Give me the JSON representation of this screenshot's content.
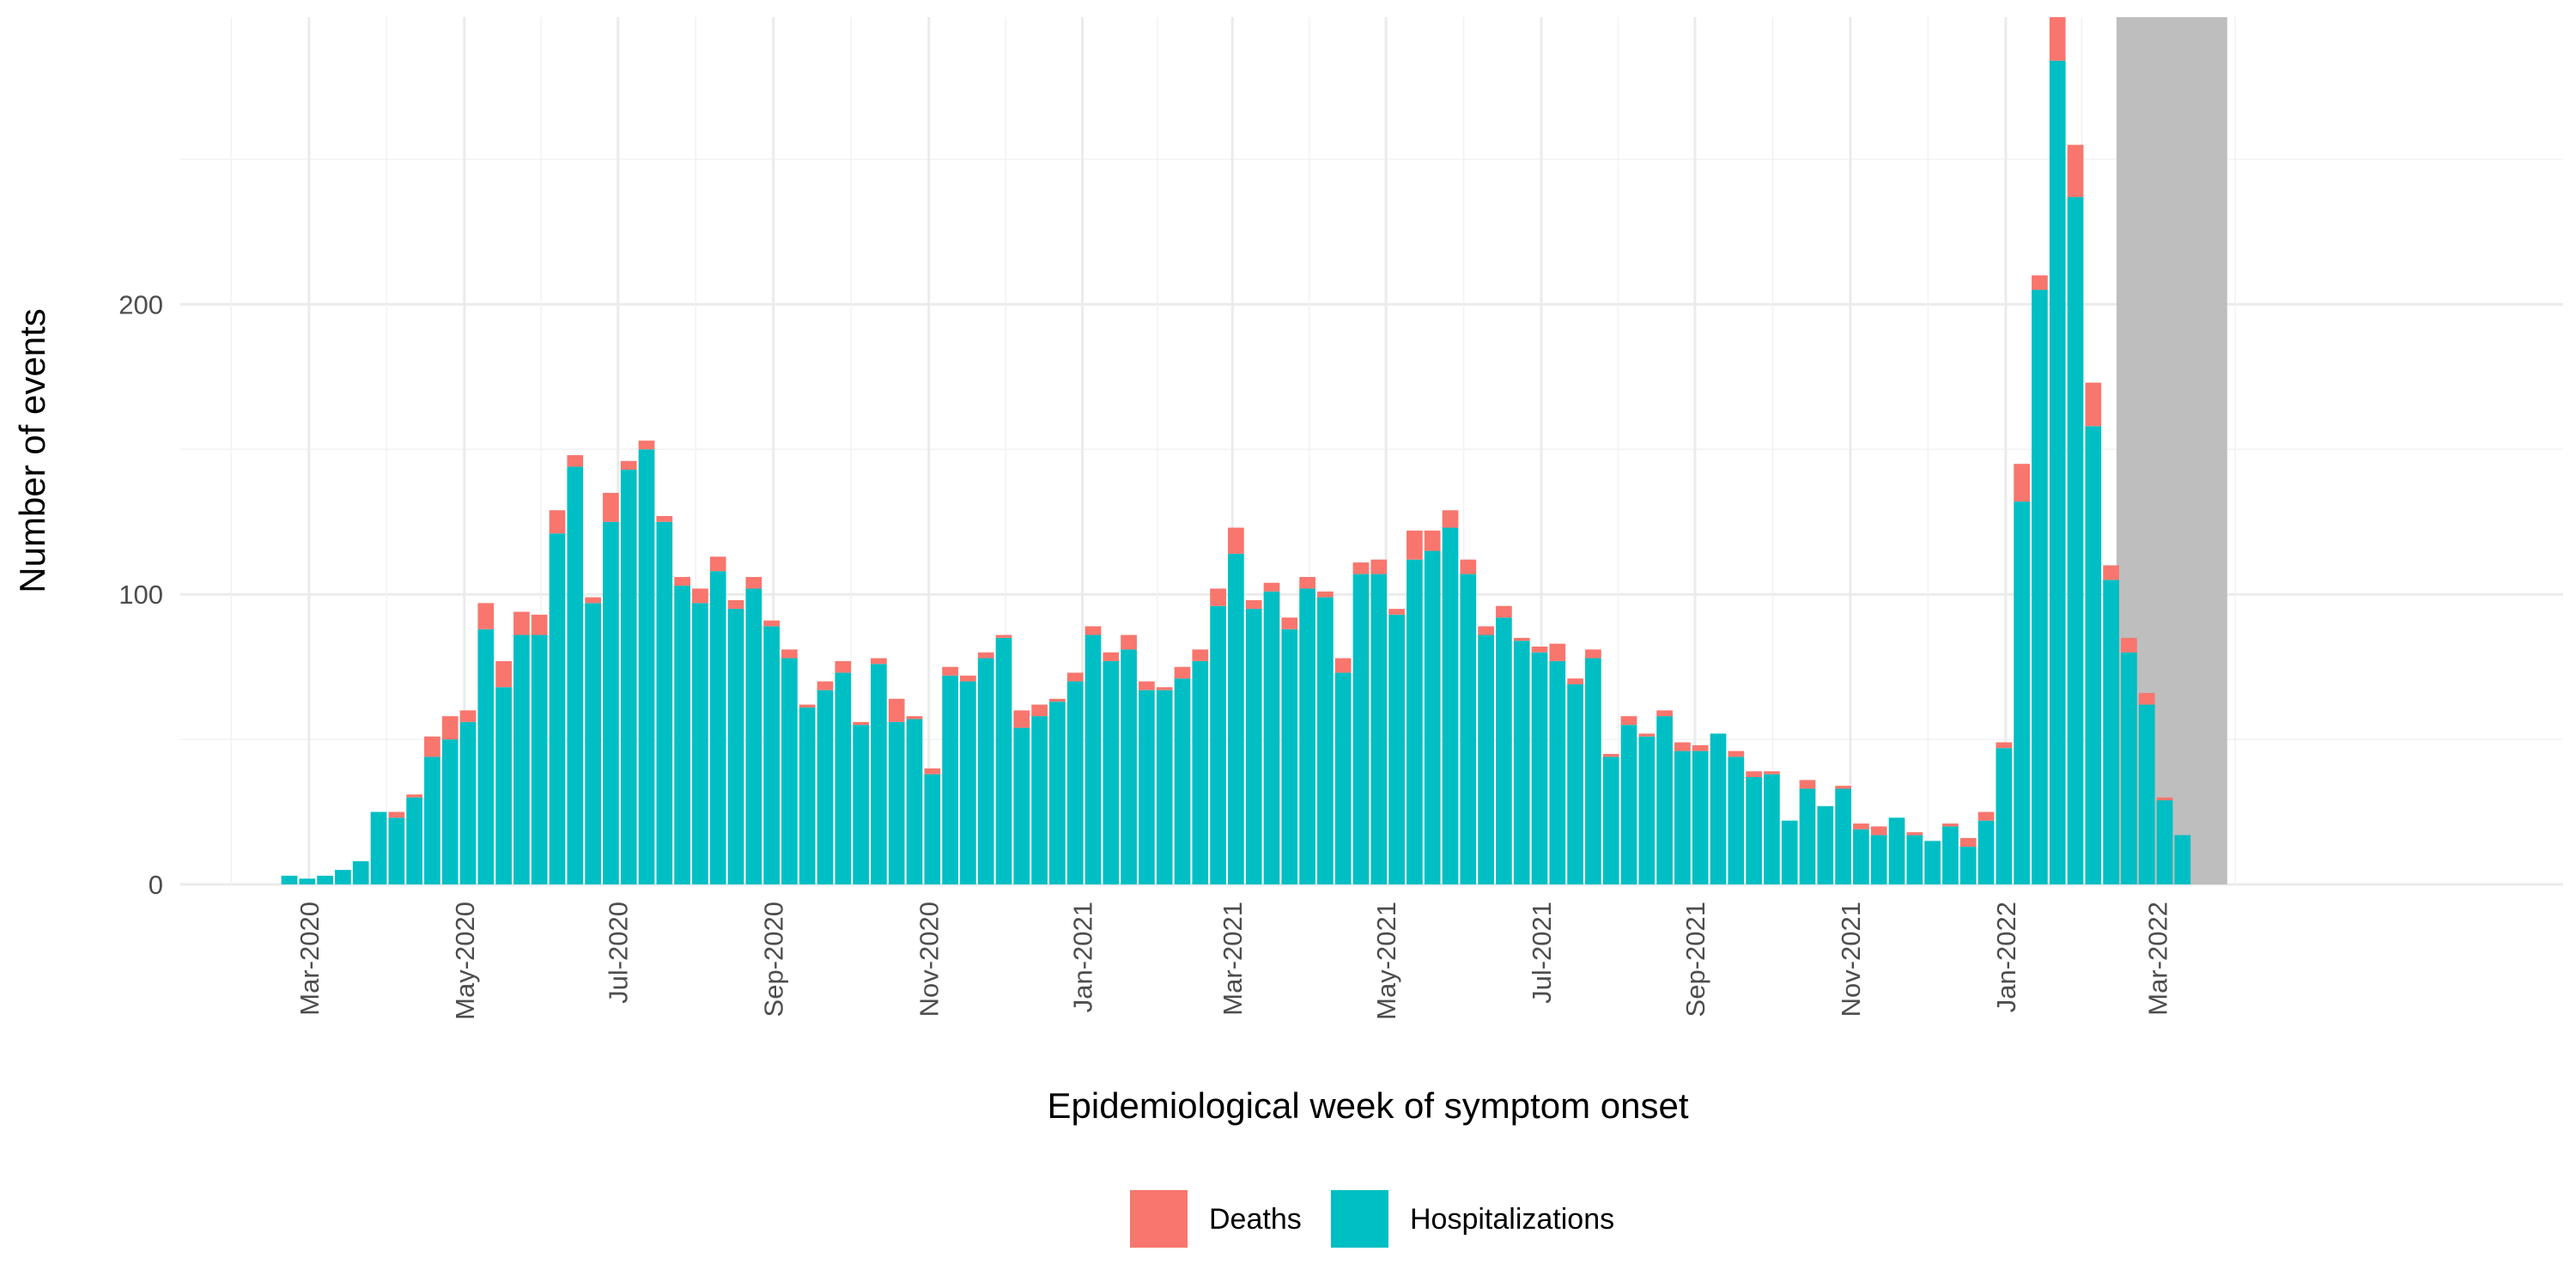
{
  "chart_data": {
    "type": "bar",
    "stacked": true,
    "xlabel": "Epidemiological week of symptom onset",
    "ylabel": "Number of events",
    "ylim": [
      0,
      299
    ],
    "y_ticks": [
      0,
      100,
      200
    ],
    "x_tick_labels": [
      "Mar-2020",
      "May-2020",
      "Jul-2020",
      "Sep-2020",
      "Nov-2020",
      "Jan-2021",
      "Mar-2021",
      "May-2021",
      "Jul-2021",
      "Sep-2021",
      "Nov-2021",
      "Jan-2022",
      "Mar-2022"
    ],
    "x_tick_week_index": [
      1.1,
      9.8,
      18.4,
      27.1,
      35.8,
      44.4,
      52.8,
      61.4,
      70.1,
      78.7,
      87.4,
      96.1,
      104.6
    ],
    "shaded_region": {
      "start_week_index": 102.3,
      "end_week_index": 108.5,
      "color": "#bebebe"
    },
    "legend_position": "bottom",
    "series": [
      {
        "name": "Hospitalizations",
        "color": "#00bfc4",
        "values": [
          3,
          2,
          3,
          5,
          8,
          25,
          23,
          30,
          44,
          50,
          56,
          88,
          68,
          86,
          86,
          121,
          144,
          97,
          125,
          143,
          150,
          125,
          103,
          97,
          108,
          95,
          102,
          89,
          78,
          61,
          67,
          73,
          55,
          76,
          56,
          57,
          38,
          72,
          70,
          78,
          85,
          54,
          58,
          63,
          70,
          86,
          77,
          81,
          67,
          67,
          71,
          77,
          96,
          114,
          95,
          101,
          88,
          102,
          99,
          73,
          107,
          107,
          93,
          112,
          115,
          123,
          107,
          86,
          92,
          84,
          80,
          77,
          69,
          78,
          44,
          55,
          51,
          58,
          46,
          46,
          52,
          44,
          37,
          38,
          22,
          33,
          27,
          33,
          19,
          17,
          23,
          17,
          15,
          20,
          13,
          22,
          47,
          132,
          205,
          284,
          237,
          158,
          105,
          80,
          62,
          29,
          17
        ]
      },
      {
        "name": "Deaths",
        "color": "#f8766d",
        "values": [
          0,
          0,
          0,
          0,
          0,
          0,
          2,
          1,
          7,
          8,
          4,
          9,
          9,
          8,
          7,
          8,
          4,
          2,
          10,
          3,
          3,
          2,
          3,
          5,
          5,
          3,
          4,
          2,
          3,
          1,
          3,
          4,
          1,
          2,
          8,
          1,
          2,
          3,
          2,
          2,
          1,
          6,
          4,
          1,
          3,
          3,
          3,
          5,
          3,
          1,
          4,
          4,
          6,
          9,
          3,
          3,
          4,
          4,
          2,
          5,
          4,
          5,
          2,
          10,
          7,
          6,
          5,
          3,
          4,
          1,
          2,
          6,
          2,
          3,
          1,
          3,
          1,
          2,
          3,
          2,
          0,
          2,
          2,
          1,
          0,
          3,
          0,
          1,
          2,
          3,
          0,
          1,
          0,
          1,
          3,
          3,
          2,
          13,
          5,
          16,
          18,
          15,
          5,
          5,
          4,
          1,
          0
        ]
      }
    ]
  }
}
